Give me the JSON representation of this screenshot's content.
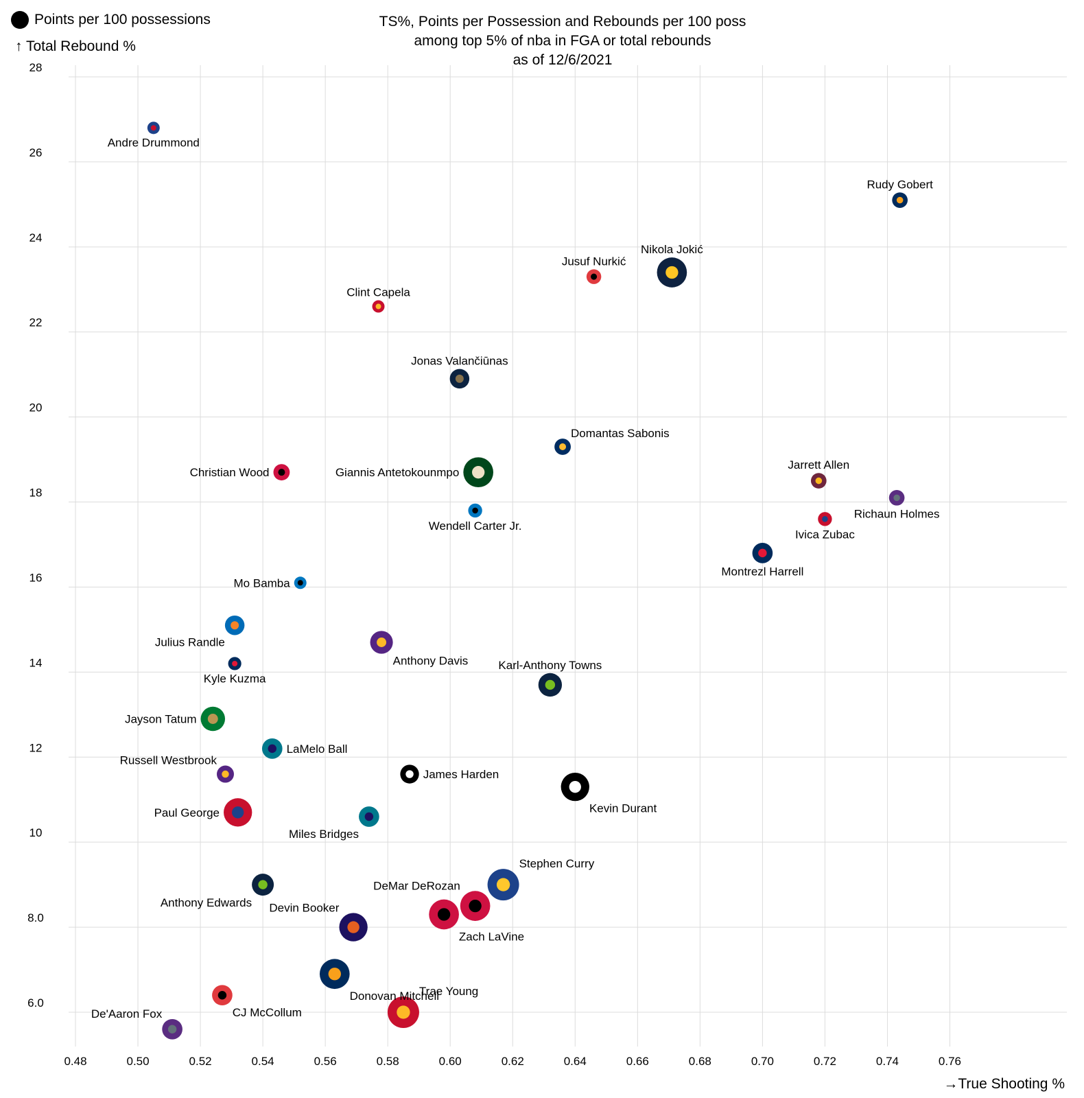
{
  "chart_data": {
    "type": "scatter",
    "title": [
      "TS%, Points per Possession and Rebounds per 100 poss",
      "among top 5% of nba in FGA or total rebounds",
      "as of 12/6/2021"
    ],
    "xlabel": "→True Shooting %",
    "ylabel": "↑ Total Rebound %",
    "size_legend": "Points per 100 possessions",
    "xlim": [
      0.475,
      0.785
    ],
    "ylim": [
      5.0,
      28.5
    ],
    "grid": true,
    "xticks": [
      0.48,
      0.5,
      0.52,
      0.54,
      0.56,
      0.58,
      0.6,
      0.62,
      0.64,
      0.66,
      0.68,
      0.7,
      0.72,
      0.74,
      0.76
    ],
    "xtick_labels": [
      "0.48",
      "0.50",
      "0.52",
      "0.54",
      "0.56",
      "0.58",
      "0.60",
      "0.62",
      "0.64",
      "0.66",
      "0.68",
      "0.70",
      "0.72",
      "0.74",
      "0.76"
    ],
    "yticks": [
      6,
      8,
      10,
      12,
      14,
      16,
      18,
      20,
      22,
      24,
      26,
      28
    ],
    "ytick_labels": [
      "6.0",
      "8.0",
      "10",
      "12",
      "14",
      "16",
      "18",
      "20",
      "22",
      "24",
      "26",
      "28"
    ],
    "points": [
      {
        "name": "Andre Drummond",
        "ts": 0.505,
        "reb": 26.8,
        "pts": 18,
        "outer": "#1d428a",
        "inner": "#c8102e",
        "label_pos": "below"
      },
      {
        "name": "Rudy Gobert",
        "ts": 0.744,
        "reb": 25.1,
        "pts": 22,
        "outer": "#002b5c",
        "inner": "#f9a01b",
        "label_pos": "above"
      },
      {
        "name": "Nikola Jokić",
        "ts": 0.671,
        "reb": 23.4,
        "pts": 40,
        "outer": "#0e2240",
        "inner": "#fec524",
        "label_pos": "above"
      },
      {
        "name": "Jusuf Nurkić",
        "ts": 0.646,
        "reb": 23.3,
        "pts": 21,
        "outer": "#e03a3e",
        "inner": "#000000",
        "label_pos": "above"
      },
      {
        "name": "Clint Capela",
        "ts": 0.577,
        "reb": 22.6,
        "pts": 18,
        "outer": "#c8102e",
        "inner": "#fdb927",
        "label_pos": "above"
      },
      {
        "name": "Jonas Valančiūnas",
        "ts": 0.603,
        "reb": 20.9,
        "pts": 27,
        "outer": "#0c2340",
        "inner": "#85714d",
        "label_pos": "above"
      },
      {
        "name": "Domantas Sabonis",
        "ts": 0.636,
        "reb": 19.3,
        "pts": 23,
        "outer": "#002d62",
        "inner": "#fdbb30",
        "label_pos": "above-right"
      },
      {
        "name": "Giannis Antetokounmpo",
        "ts": 0.609,
        "reb": 18.7,
        "pts": 40,
        "outer": "#00471b",
        "inner": "#eee1c6",
        "label_pos": "left"
      },
      {
        "name": "Christian Wood",
        "ts": 0.546,
        "reb": 18.7,
        "pts": 23,
        "outer": "#ce1141",
        "inner": "#000000",
        "label_pos": "left"
      },
      {
        "name": "Jarrett Allen",
        "ts": 0.718,
        "reb": 18.5,
        "pts": 22,
        "outer": "#6f263d",
        "inner": "#ffb81c",
        "label_pos": "above"
      },
      {
        "name": "Richaun Holmes",
        "ts": 0.743,
        "reb": 18.1,
        "pts": 22,
        "outer": "#5a2d81",
        "inner": "#63727a",
        "label_pos": "below"
      },
      {
        "name": "Wendell Carter Jr.",
        "ts": 0.608,
        "reb": 17.8,
        "pts": 20,
        "outer": "#0077c0",
        "inner": "#000000",
        "label_pos": "below"
      },
      {
        "name": "Ivica Zubac",
        "ts": 0.72,
        "reb": 17.6,
        "pts": 20,
        "outer": "#c8102e",
        "inner": "#1d428a",
        "label_pos": "below"
      },
      {
        "name": "Montrezl Harrell",
        "ts": 0.7,
        "reb": 16.8,
        "pts": 28,
        "outer": "#002b5c",
        "inner": "#e31837",
        "label_pos": "below"
      },
      {
        "name": "Mo Bamba",
        "ts": 0.552,
        "reb": 16.1,
        "pts": 18,
        "outer": "#0077c0",
        "inner": "#000000",
        "label_pos": "left"
      },
      {
        "name": "Julius Randle",
        "ts": 0.531,
        "reb": 15.1,
        "pts": 27,
        "outer": "#006bb6",
        "inner": "#f58426",
        "label_pos": "below-left"
      },
      {
        "name": "Anthony Davis",
        "ts": 0.578,
        "reb": 14.7,
        "pts": 31,
        "outer": "#552583",
        "inner": "#fdb927",
        "label_pos": "below-right"
      },
      {
        "name": "Kyle Kuzma",
        "ts": 0.531,
        "reb": 14.2,
        "pts": 19,
        "outer": "#002b5c",
        "inner": "#e31837",
        "label_pos": "below"
      },
      {
        "name": "Karl-Anthony Towns",
        "ts": 0.632,
        "reb": 13.7,
        "pts": 32,
        "outer": "#0c2340",
        "inner": "#78be20",
        "label_pos": "above"
      },
      {
        "name": "Jayson Tatum",
        "ts": 0.524,
        "reb": 12.9,
        "pts": 33,
        "outer": "#007a33",
        "inner": "#ba9653",
        "label_pos": "left"
      },
      {
        "name": "LaMelo Ball",
        "ts": 0.543,
        "reb": 12.2,
        "pts": 28,
        "outer": "#00788c",
        "inner": "#1d1160",
        "label_pos": "right"
      },
      {
        "name": "Russell Westbrook",
        "ts": 0.528,
        "reb": 11.6,
        "pts": 24,
        "outer": "#552583",
        "inner": "#fdb927",
        "label_pos": "above-left"
      },
      {
        "name": "James Harden",
        "ts": 0.587,
        "reb": 11.6,
        "pts": 26,
        "outer": "#000000",
        "inner": "#ffffff",
        "label_pos": "right"
      },
      {
        "name": "Kevin Durant",
        "ts": 0.64,
        "reb": 11.3,
        "pts": 38,
        "outer": "#000000",
        "inner": "#ffffff",
        "label_pos": "below-right"
      },
      {
        "name": "Paul George",
        "ts": 0.532,
        "reb": 10.7,
        "pts": 38,
        "outer": "#c8102e",
        "inner": "#1d428a",
        "label_pos": "left"
      },
      {
        "name": "Miles Bridges",
        "ts": 0.574,
        "reb": 10.6,
        "pts": 28,
        "outer": "#00788c",
        "inner": "#1d1160",
        "label_pos": "below-left"
      },
      {
        "name": "Stephen Curry",
        "ts": 0.617,
        "reb": 9.0,
        "pts": 42,
        "outer": "#1d428a",
        "inner": "#ffc72c",
        "label_pos": "above-right"
      },
      {
        "name": "Anthony Edwards",
        "ts": 0.54,
        "reb": 9.0,
        "pts": 30,
        "outer": "#0c2340",
        "inner": "#78be20",
        "label_pos": "below-left"
      },
      {
        "name": "DeMar DeRozan",
        "ts": 0.608,
        "reb": 8.5,
        "pts": 40,
        "outer": "#ce1141",
        "inner": "#000000",
        "label_pos": "above-left"
      },
      {
        "name": "Zach LaVine",
        "ts": 0.598,
        "reb": 8.3,
        "pts": 40,
        "outer": "#ce1141",
        "inner": "#000000",
        "label_pos": "below-right"
      },
      {
        "name": "Devin Booker",
        "ts": 0.569,
        "reb": 8.0,
        "pts": 38,
        "outer": "#1d1160",
        "inner": "#e56020",
        "label_pos": "above-left"
      },
      {
        "name": "Donovan Mitchell",
        "ts": 0.563,
        "reb": 6.9,
        "pts": 40,
        "outer": "#002b5c",
        "inner": "#f9a01b",
        "label_pos": "below-right"
      },
      {
        "name": "CJ McCollum",
        "ts": 0.527,
        "reb": 6.4,
        "pts": 28,
        "outer": "#e03a3e",
        "inner": "#000000",
        "label_pos": "below-right"
      },
      {
        "name": "Trae Young",
        "ts": 0.585,
        "reb": 6.0,
        "pts": 42,
        "outer": "#c8102e",
        "inner": "#fdb927",
        "label_pos": "above-right"
      },
      {
        "name": "De'Aaron Fox",
        "ts": 0.511,
        "reb": 5.6,
        "pts": 28,
        "outer": "#5a2d81",
        "inner": "#63727a",
        "label_pos": "above-left"
      }
    ]
  }
}
